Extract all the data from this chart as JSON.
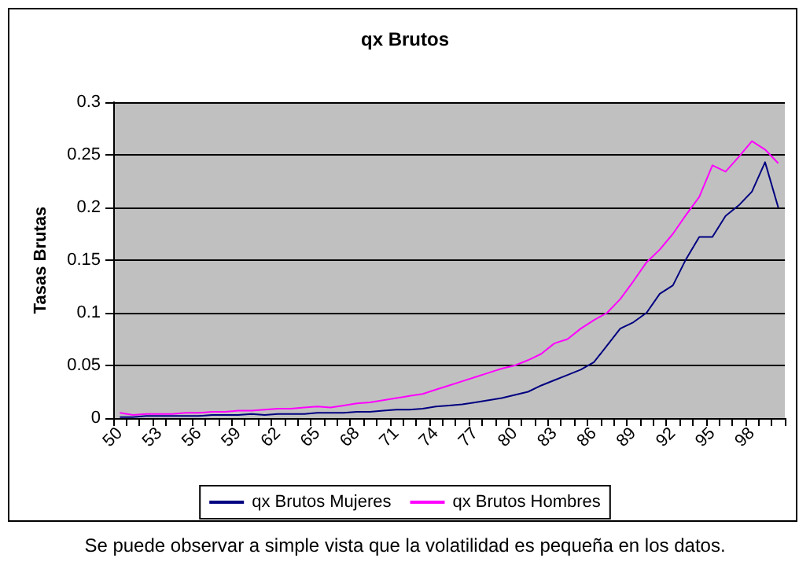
{
  "chart_data": {
    "type": "line",
    "title": "qx Brutos",
    "ylabel": "Tasas Brutas",
    "categories": [
      "50",
      null,
      null,
      "53",
      null,
      null,
      "56",
      null,
      null,
      "59",
      null,
      null,
      "62",
      null,
      null,
      "65",
      null,
      null,
      "68",
      null,
      null,
      "71",
      null,
      null,
      "74",
      null,
      null,
      "77",
      null,
      null,
      "80",
      null,
      null,
      "83",
      null,
      null,
      "86",
      null,
      null,
      "89",
      null,
      null,
      "92",
      null,
      null,
      "95",
      null,
      null,
      "98",
      null,
      null
    ],
    "series": [
      {
        "name": "qx Brutos Mujeres",
        "color": "#000080",
        "values": [
          0.001,
          0.001,
          0.002,
          0.002,
          0.002,
          0.002,
          0.002,
          0.003,
          0.003,
          0.003,
          0.004,
          0.003,
          0.004,
          0.004,
          0.004,
          0.005,
          0.005,
          0.005,
          0.006,
          0.006,
          0.007,
          0.008,
          0.008,
          0.009,
          0.011,
          0.012,
          0.013,
          0.015,
          0.017,
          0.019,
          0.022,
          0.025,
          0.031,
          0.036,
          0.041,
          0.046,
          0.053,
          0.069,
          0.085,
          0.091,
          0.1,
          0.118,
          0.126,
          0.151,
          0.172,
          0.172,
          0.192,
          0.202,
          0.215,
          0.243,
          0.2
        ]
      },
      {
        "name": "qx Brutos Hombres",
        "color": "#ff00ff",
        "values": [
          0.005,
          0.003,
          0.004,
          0.004,
          0.004,
          0.005,
          0.005,
          0.006,
          0.006,
          0.007,
          0.007,
          0.008,
          0.009,
          0.009,
          0.01,
          0.011,
          0.01,
          0.012,
          0.014,
          0.015,
          0.017,
          0.019,
          0.021,
          0.023,
          0.027,
          0.031,
          0.035,
          0.039,
          0.043,
          0.047,
          0.05,
          0.055,
          0.061,
          0.071,
          0.075,
          0.085,
          0.093,
          0.1,
          0.113,
          0.13,
          0.148,
          0.16,
          0.175,
          0.193,
          0.21,
          0.24,
          0.234,
          0.248,
          0.263,
          0.255,
          0.242
        ]
      }
    ],
    "ylim": [
      0,
      0.3
    ],
    "yticks": [
      0,
      0.05,
      0.1,
      0.15,
      0.2,
      0.25,
      0.3
    ],
    "grid": "y",
    "legend": "bottom",
    "marker": "none",
    "line_style": "solid",
    "annotations": [
      "Se puede observar a simple vista que la volatilidad es pequeña en los datos."
    ]
  }
}
